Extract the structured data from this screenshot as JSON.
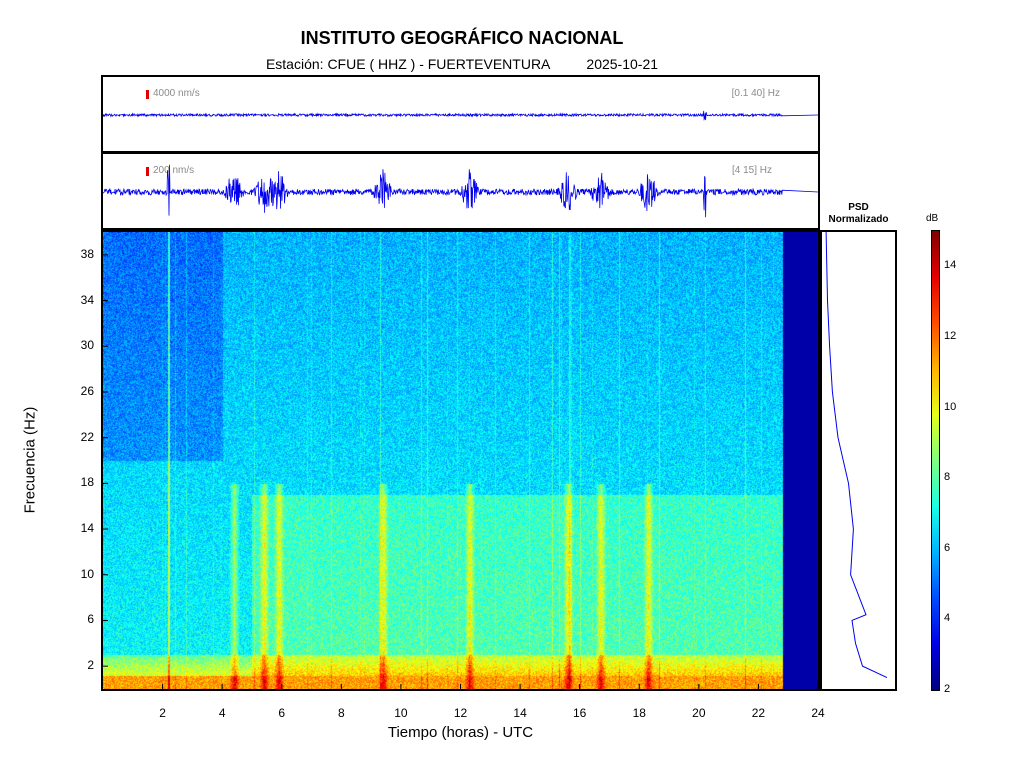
{
  "header": {
    "title": "INSTITUTO GEOGRÁFICO NACIONAL",
    "station_label": "Estación:",
    "station": "CFUE ( HHZ ) - FUERTEVENTURA",
    "date": "2025-10-21"
  },
  "trace_top": {
    "scale": "4000 nm/s",
    "band": "[0.1 40] Hz"
  },
  "trace_bottom": {
    "scale": "200 nm/s",
    "band": "[4 15] Hz"
  },
  "psd": {
    "title_line1": "PSD",
    "title_line2": "Normalizado"
  },
  "colorbar": {
    "unit": "dB",
    "min": 2,
    "max": 15,
    "ticks": [
      "2",
      "4",
      "6",
      "8",
      "10",
      "12",
      "14"
    ]
  },
  "colors": {
    "trace": "#0000ee",
    "scale_marker": "#e00000"
  },
  "chart_data": {
    "type": "heatmap",
    "title": "INSTITUTO GEOGRÁFICO NACIONAL",
    "xlabel": "Tiempo (horas) - UTC",
    "ylabel": "Frecuencia  (Hz)",
    "xlim": [
      0,
      24
    ],
    "ylim": [
      0,
      40
    ],
    "xticks": [
      "2",
      "4",
      "6",
      "8",
      "10",
      "12",
      "14",
      "16",
      "18",
      "20",
      "22",
      "24"
    ],
    "yticks": [
      "2",
      "6",
      "10",
      "14",
      "18",
      "22",
      "26",
      "30",
      "34",
      "38"
    ],
    "data_end_hour": 22.8,
    "colormap": "jet",
    "color_range_db": [
      2,
      15
    ],
    "energetic_bursts_hours": [
      4.4,
      5.4,
      5.9,
      9.4,
      12.3,
      15.6,
      16.7,
      18.3
    ],
    "psd_profile": [
      {
        "f": 1,
        "p": 0.9
      },
      {
        "f": 2,
        "p": 0.55
      },
      {
        "f": 4,
        "p": 0.45
      },
      {
        "f": 6,
        "p": 0.4
      },
      {
        "f": 6.5,
        "p": 0.6
      },
      {
        "f": 10,
        "p": 0.38
      },
      {
        "f": 14,
        "p": 0.42
      },
      {
        "f": 18,
        "p": 0.35
      },
      {
        "f": 22,
        "p": 0.2
      },
      {
        "f": 26,
        "p": 0.12
      },
      {
        "f": 30,
        "p": 0.08
      },
      {
        "f": 34,
        "p": 0.05
      },
      {
        "f": 40,
        "p": 0.03
      }
    ]
  },
  "axes": {
    "xlabel": "Tiempo (horas) - UTC",
    "ylabel": "Frecuencia  (Hz)"
  }
}
